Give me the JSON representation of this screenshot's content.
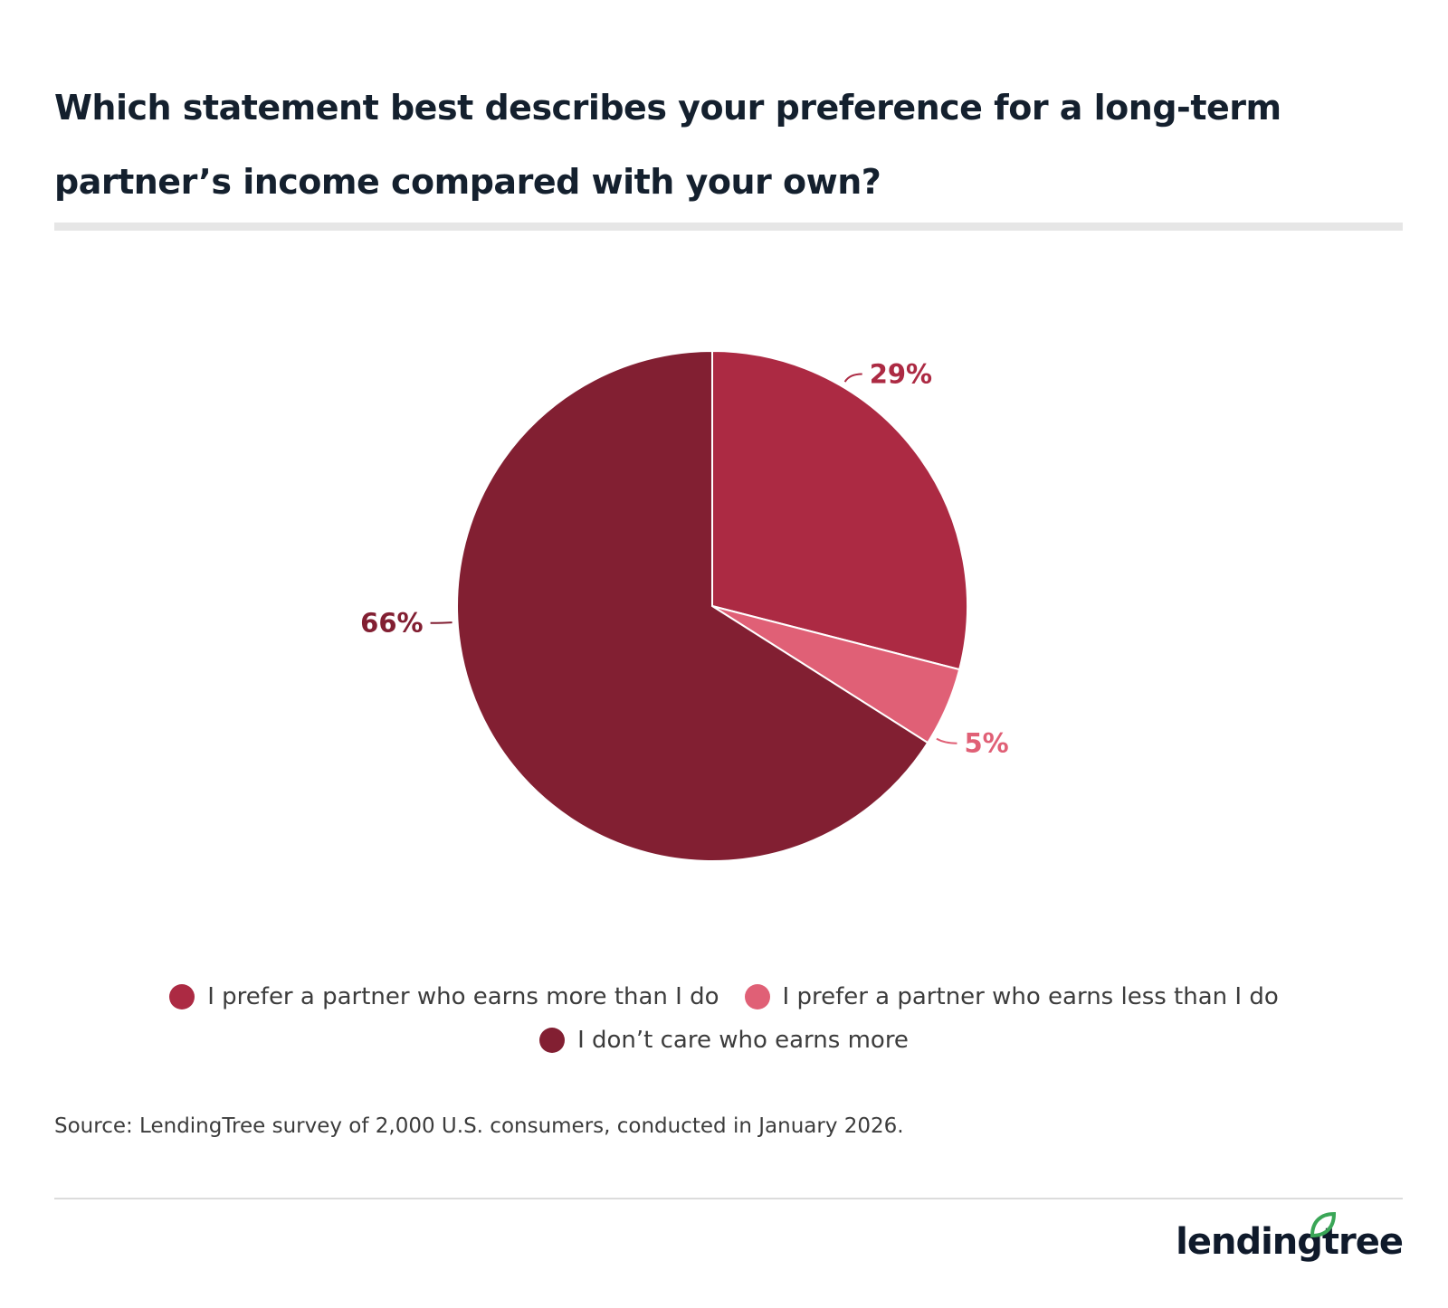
{
  "title": "Which statement best describes your preference for a long-term partner’s income compared with your own?",
  "source": "Source: LendingTree survey of 2,000 U.S. consumers, conducted in January 2026.",
  "brand": {
    "name": "lendingtree",
    "leaf_color": "#3aa657"
  },
  "chart_data": {
    "type": "pie",
    "categories": [
      "I prefer a partner who earns more than I do",
      "I prefer a partner who earns less than I do",
      "I don’t care who earns more"
    ],
    "values": [
      29,
      5,
      66
    ],
    "labels": [
      "29%",
      "5%",
      "66%"
    ],
    "colors": [
      "#ac2a43",
      "#e06076",
      "#821f32"
    ],
    "legend_position": "bottom"
  }
}
